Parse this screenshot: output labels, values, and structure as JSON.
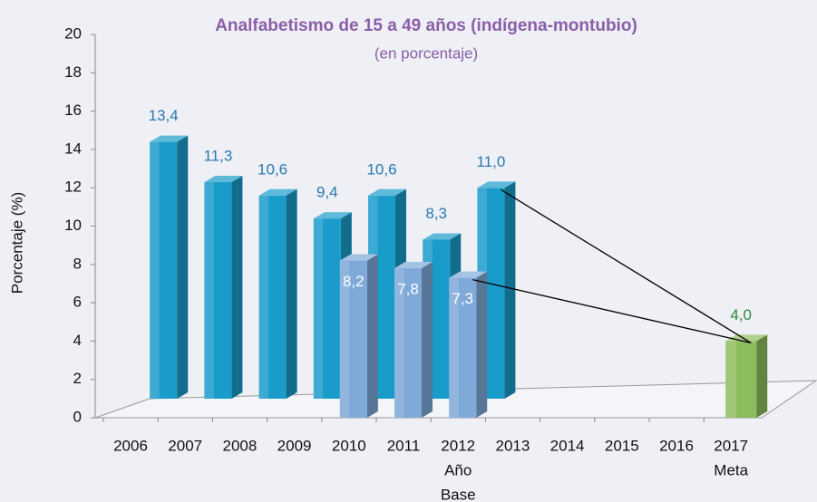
{
  "chart_data": {
    "type": "bar3d",
    "title": "Analfabetismo de 15 a 49 años (indígena-montubio)",
    "subtitle": "(en porcentaje)",
    "y_label": "Porcentaje (%)",
    "categories": [
      "2006",
      "2007",
      "2008",
      "2009",
      "2010",
      "2011",
      [
        "2012",
        "Año",
        "Base"
      ],
      "2013",
      "2014",
      "2015",
      "2016",
      [
        "2017",
        "Meta"
      ]
    ],
    "series": [
      {
        "color": "#1a9ccb",
        "row": "back",
        "label_color": "#2a78b0",
        "values": [
          null,
          13.4,
          11.3,
          10.6,
          9.4,
          10.6,
          8.3,
          11.0,
          null,
          null,
          null,
          null
        ],
        "value_labels": [
          null,
          "13,4",
          "11,3",
          "10,6",
          "9,4",
          "10,6",
          "8,3",
          "11,0",
          null,
          null,
          null,
          null
        ]
      },
      {
        "color": "#7fa9d8",
        "row": "front",
        "label_color": "#ffffff",
        "values": [
          null,
          null,
          null,
          null,
          8.2,
          7.8,
          7.3,
          null,
          null,
          null,
          null,
          null
        ],
        "value_labels": [
          null,
          null,
          null,
          null,
          "8,2",
          "7,8",
          "7,3",
          null,
          null,
          null,
          null,
          null
        ]
      },
      {
        "color": "#8dbd5c",
        "row": "target",
        "label_color": "#2e8a3a",
        "values": [
          null,
          null,
          null,
          null,
          null,
          null,
          null,
          null,
          null,
          null,
          null,
          4.0
        ],
        "value_labels": [
          null,
          null,
          null,
          null,
          null,
          null,
          null,
          null,
          null,
          null,
          null,
          "4,0"
        ]
      }
    ],
    "ylim": [
      0,
      20
    ],
    "yticks": [
      0,
      2,
      4,
      6,
      8,
      10,
      12,
      14,
      16,
      18,
      20
    ]
  }
}
